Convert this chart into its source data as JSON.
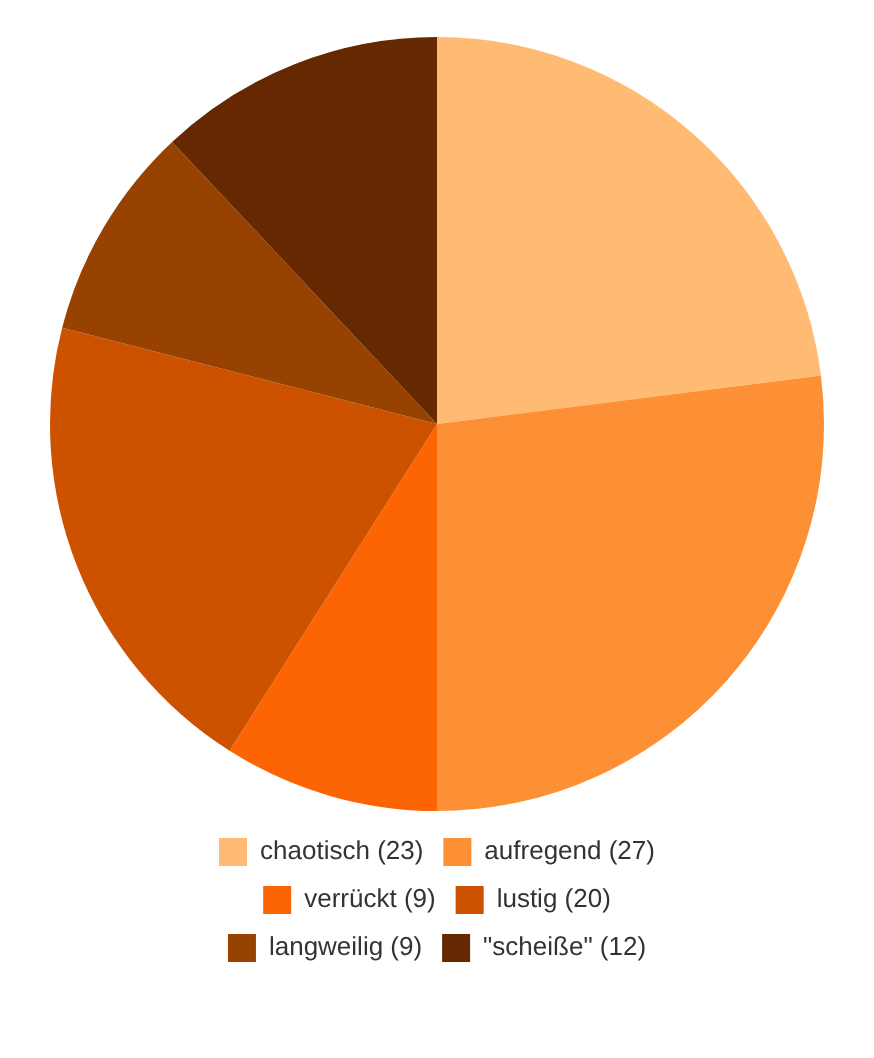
{
  "chart_data": {
    "type": "pie",
    "categories": [
      "chaotisch (23)",
      "aufregend (27)",
      "verrückt (9)",
      "lustig (20)",
      "langweilig (9)",
      "\"scheiße\" (12)"
    ],
    "values": [
      23,
      27,
      9,
      20,
      9,
      12
    ],
    "colors": [
      "#ffbb73",
      "#fd9035",
      "#fd6404",
      "#cc5200",
      "#974200",
      "#652800"
    ],
    "legend": "bottom"
  }
}
